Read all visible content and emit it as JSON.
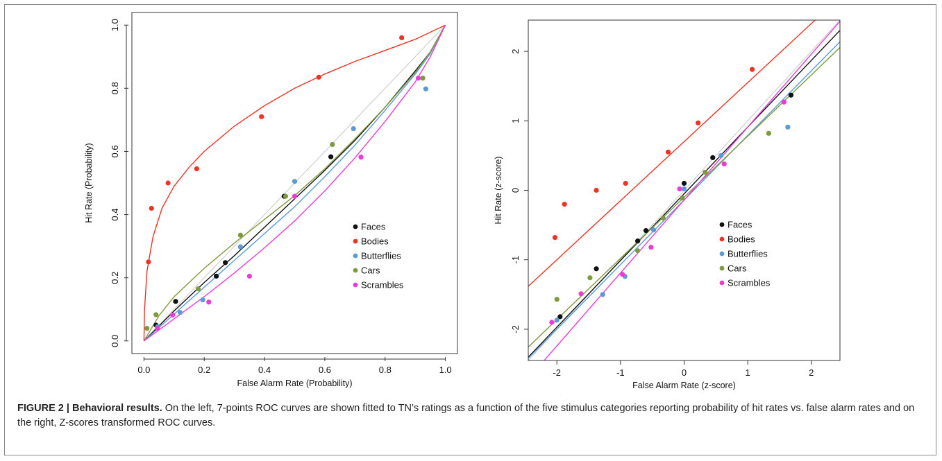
{
  "colors": {
    "Faces": "#111111",
    "Bodies": "#ee3324",
    "Butterflies": "#5b9bd5",
    "Cars": "#7f9a3c",
    "Scrambles": "#ee3bd8",
    "diagonal": "#c8c8c8"
  },
  "caption": {
    "label": "FIGURE 2 | Behavioral results.",
    "text": " On the left, 7-points ROC curves are shown fitted to TN’s ratings as a function of the five stimulus categories reporting probability of hit rates vs. false alarm rates and on the right, Z-scores transformed ROC curves."
  },
  "chart_data": [
    {
      "type": "scatter",
      "title": "",
      "xlabel": "False Alarm Rate (Probability)",
      "ylabel": "Hit Rate (Probability)",
      "xlim": [
        -0.04,
        1.04
      ],
      "ylim": [
        -0.04,
        1.04
      ],
      "xticks": [
        "0.0",
        "0.2",
        "0.4",
        "0.6",
        "0.8",
        "1.0"
      ],
      "yticks": [
        "0.0",
        "0.2",
        "0.4",
        "0.6",
        "0.8",
        "1.0"
      ],
      "legend_position": "bottom-right",
      "diagonal_reference": true,
      "series": [
        {
          "name": "Faces",
          "points": [
            [
              0.04,
              0.05
            ],
            [
              0.105,
              0.125
            ],
            [
              0.24,
              0.205
            ],
            [
              0.27,
              0.248
            ],
            [
              0.465,
              0.458
            ],
            [
              0.62,
              0.583
            ]
          ],
          "curve": [
            [
              0,
              0
            ],
            [
              0.1,
              0.095
            ],
            [
              0.2,
              0.185
            ],
            [
              0.3,
              0.27
            ],
            [
              0.4,
              0.36
            ],
            [
              0.5,
              0.45
            ],
            [
              0.6,
              0.54
            ],
            [
              0.7,
              0.635
            ],
            [
              0.8,
              0.74
            ],
            [
              0.9,
              0.855
            ],
            [
              0.95,
              0.915
            ],
            [
              1,
              1
            ]
          ]
        },
        {
          "name": "Bodies",
          "points": [
            [
              0.015,
              0.25
            ],
            [
              0.025,
              0.42
            ],
            [
              0.08,
              0.5
            ],
            [
              0.175,
              0.545
            ],
            [
              0.39,
              0.71
            ],
            [
              0.58,
              0.835
            ],
            [
              0.855,
              0.96
            ]
          ],
          "curve": [
            [
              0,
              0
            ],
            [
              0.002,
              0.1
            ],
            [
              0.01,
              0.22
            ],
            [
              0.03,
              0.33
            ],
            [
              0.06,
              0.42
            ],
            [
              0.1,
              0.49
            ],
            [
              0.15,
              0.55
            ],
            [
              0.2,
              0.6
            ],
            [
              0.3,
              0.68
            ],
            [
              0.4,
              0.745
            ],
            [
              0.5,
              0.8
            ],
            [
              0.6,
              0.845
            ],
            [
              0.7,
              0.885
            ],
            [
              0.8,
              0.92
            ],
            [
              0.9,
              0.955
            ],
            [
              1,
              1
            ]
          ]
        },
        {
          "name": "Butterflies",
          "points": [
            [
              0.045,
              0.045
            ],
            [
              0.12,
              0.09
            ],
            [
              0.195,
              0.13
            ],
            [
              0.32,
              0.298
            ],
            [
              0.5,
              0.505
            ],
            [
              0.695,
              0.672
            ],
            [
              0.935,
              0.798
            ]
          ],
          "curve": [
            [
              0,
              0
            ],
            [
              0.1,
              0.085
            ],
            [
              0.2,
              0.17
            ],
            [
              0.3,
              0.255
            ],
            [
              0.4,
              0.34
            ],
            [
              0.5,
              0.425
            ],
            [
              0.6,
              0.52
            ],
            [
              0.7,
              0.62
            ],
            [
              0.8,
              0.73
            ],
            [
              0.9,
              0.845
            ],
            [
              0.95,
              0.91
            ],
            [
              1,
              1
            ]
          ]
        },
        {
          "name": "Cars",
          "points": [
            [
              0.01,
              0.04
            ],
            [
              0.04,
              0.083
            ],
            [
              0.18,
              0.165
            ],
            [
              0.32,
              0.335
            ],
            [
              0.47,
              0.458
            ],
            [
              0.625,
              0.622
            ],
            [
              0.925,
              0.832
            ]
          ],
          "curve": [
            [
              0,
              0
            ],
            [
              0.05,
              0.08
            ],
            [
              0.1,
              0.14
            ],
            [
              0.2,
              0.23
            ],
            [
              0.3,
              0.31
            ],
            [
              0.4,
              0.385
            ],
            [
              0.5,
              0.46
            ],
            [
              0.6,
              0.545
            ],
            [
              0.7,
              0.64
            ],
            [
              0.8,
              0.74
            ],
            [
              0.9,
              0.85
            ],
            [
              0.95,
              0.915
            ],
            [
              1,
              1
            ]
          ]
        },
        {
          "name": "Scrambles",
          "points": [
            [
              0.045,
              0.04
            ],
            [
              0.095,
              0.082
            ],
            [
              0.215,
              0.123
            ],
            [
              0.35,
              0.205
            ],
            [
              0.5,
              0.458
            ],
            [
              0.72,
              0.582
            ],
            [
              0.91,
              0.832
            ]
          ],
          "curve": [
            [
              0,
              0
            ],
            [
              0.1,
              0.07
            ],
            [
              0.2,
              0.14
            ],
            [
              0.3,
              0.215
            ],
            [
              0.4,
              0.295
            ],
            [
              0.5,
              0.38
            ],
            [
              0.6,
              0.475
            ],
            [
              0.7,
              0.58
            ],
            [
              0.8,
              0.695
            ],
            [
              0.9,
              0.82
            ],
            [
              0.95,
              0.9
            ],
            [
              1,
              1
            ]
          ]
        }
      ]
    },
    {
      "type": "scatter",
      "title": "",
      "xlabel": "False Alarm Rate (z-score)",
      "ylabel": "Hit Rate (z-score)",
      "xlim": [
        -2.45,
        2.45
      ],
      "ylim": [
        -2.45,
        2.45
      ],
      "xticks": [
        "-2",
        "-1",
        "0",
        "1",
        "2"
      ],
      "yticks": [
        "-2",
        "-1",
        "0",
        "1",
        "2"
      ],
      "legend_position": "bottom-right",
      "diagonal_reference": true,
      "series": [
        {
          "name": "Faces",
          "points": [
            [
              -1.95,
              -1.82
            ],
            [
              -1.38,
              -1.13
            ],
            [
              -0.73,
              -0.73
            ],
            [
              -0.6,
              -0.58
            ],
            [
              0.45,
              0.47
            ],
            [
              0.0,
              0.1
            ],
            [
              1.68,
              1.37
            ]
          ],
          "line": {
            "slope": 0.96,
            "intercept": -0.05
          }
        },
        {
          "name": "Bodies",
          "points": [
            [
              -2.03,
              -0.68
            ],
            [
              -1.88,
              -0.2
            ],
            [
              -1.38,
              0.0
            ],
            [
              -0.92,
              0.1
            ],
            [
              -0.25,
              0.55
            ],
            [
              0.22,
              0.97
            ],
            [
              1.07,
              1.74
            ]
          ],
          "line": {
            "slope": 0.85,
            "intercept": 0.7
          }
        },
        {
          "name": "Butterflies",
          "points": [
            [
              -2.0,
              -1.87
            ],
            [
              -1.28,
              -1.5
            ],
            [
              -0.93,
              -1.24
            ],
            [
              -0.48,
              -0.57
            ],
            [
              0.0,
              0.02
            ],
            [
              0.58,
              0.5
            ],
            [
              1.63,
              0.91
            ]
          ],
          "line": {
            "slope": 0.93,
            "intercept": -0.14
          }
        },
        {
          "name": "Cars",
          "points": [
            [
              -2.0,
              -1.57
            ],
            [
              -1.48,
              -1.26
            ],
            [
              -0.73,
              -0.87
            ],
            [
              -0.33,
              -0.4
            ],
            [
              -0.03,
              -0.11
            ],
            [
              0.33,
              0.26
            ],
            [
              1.33,
              0.82
            ]
          ],
          "line": {
            "slope": 0.88,
            "intercept": -0.1
          }
        },
        {
          "name": "Scrambles",
          "points": [
            [
              -2.08,
              -1.9
            ],
            [
              -1.62,
              -1.49
            ],
            [
              -0.97,
              -1.21
            ],
            [
              -0.52,
              -0.82
            ],
            [
              -0.07,
              0.02
            ],
            [
              0.63,
              0.38
            ],
            [
              1.57,
              1.27
            ]
          ],
          "line": {
            "slope": 1.05,
            "intercept": -0.14
          }
        }
      ]
    }
  ]
}
